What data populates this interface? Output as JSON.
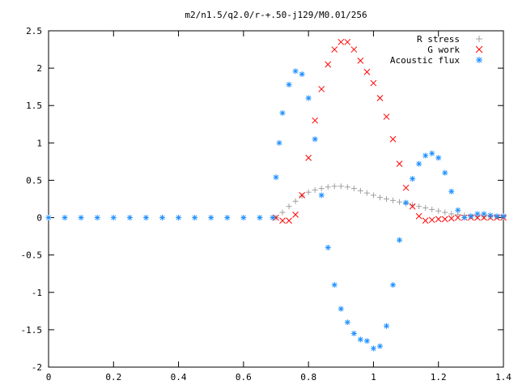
{
  "chart_data": {
    "type": "scatter",
    "title": "m2/n1.5/q2.0/r-+.50-j129/M0.01/256",
    "xlabel": "",
    "ylabel": "",
    "xlim": [
      0,
      1.4
    ],
    "ylim": [
      -2,
      2.5
    ],
    "x_ticks": [
      "0",
      "0.2",
      "0.4",
      "0.6",
      "0.8",
      "1",
      "1.2",
      "1.4"
    ],
    "y_ticks": [
      "2.5",
      "2",
      "1.5",
      "1",
      "0.5",
      "0",
      "-0.5",
      "-1",
      "-1.5",
      "-2"
    ],
    "grid": false,
    "legend_position": "top-right",
    "series": [
      {
        "name": "R stress",
        "marker": "+",
        "color": "#a0a0a0",
        "x": [
          0.7,
          0.72,
          0.74,
          0.76,
          0.78,
          0.8,
          0.82,
          0.84,
          0.86,
          0.88,
          0.9,
          0.92,
          0.94,
          0.96,
          0.98,
          1.0,
          1.02,
          1.04,
          1.06,
          1.08,
          1.1,
          1.12,
          1.14,
          1.16,
          1.18,
          1.2,
          1.22,
          1.24,
          1.26,
          1.28,
          1.3,
          1.32,
          1.34,
          1.36,
          1.38,
          1.4
        ],
        "y": [
          0.0,
          0.07,
          0.15,
          0.22,
          0.29,
          0.34,
          0.37,
          0.39,
          0.41,
          0.42,
          0.42,
          0.41,
          0.39,
          0.36,
          0.33,
          0.3,
          0.27,
          0.25,
          0.23,
          0.21,
          0.19,
          0.17,
          0.15,
          0.13,
          0.11,
          0.09,
          0.07,
          0.05,
          0.04,
          0.03,
          0.02,
          0.01,
          0.01,
          0.01,
          0.01,
          0.01
        ]
      },
      {
        "name": "G work",
        "marker": "x",
        "color": "#ff0000",
        "x": [
          0.7,
          0.72,
          0.74,
          0.76,
          0.78,
          0.8,
          0.82,
          0.84,
          0.86,
          0.88,
          0.9,
          0.92,
          0.94,
          0.96,
          0.98,
          1.0,
          1.02,
          1.04,
          1.06,
          1.08,
          1.1,
          1.12,
          1.14,
          1.16,
          1.18,
          1.2,
          1.22,
          1.24,
          1.26,
          1.28,
          1.3,
          1.32,
          1.34,
          1.36,
          1.38,
          1.4
        ],
        "y": [
          0.0,
          -0.04,
          -0.04,
          0.04,
          0.3,
          0.8,
          1.3,
          1.72,
          2.05,
          2.25,
          2.35,
          2.35,
          2.25,
          2.1,
          1.95,
          1.8,
          1.6,
          1.35,
          1.05,
          0.72,
          0.4,
          0.15,
          0.02,
          -0.04,
          -0.03,
          -0.02,
          -0.02,
          -0.01,
          0.0,
          0.0,
          0.0,
          0.0,
          0.0,
          0.0,
          0.0,
          0.0
        ]
      },
      {
        "name": "Acoustic flux",
        "marker": "*",
        "color": "#1e90ff",
        "x": [
          0.0,
          0.05,
          0.1,
          0.15,
          0.2,
          0.25,
          0.3,
          0.35,
          0.4,
          0.45,
          0.5,
          0.55,
          0.6,
          0.65,
          0.69,
          0.7,
          0.71,
          0.72,
          0.74,
          0.76,
          0.78,
          0.8,
          0.82,
          0.84,
          0.86,
          0.88,
          0.9,
          0.92,
          0.94,
          0.96,
          0.98,
          1.0,
          1.02,
          1.04,
          1.06,
          1.08,
          1.1,
          1.12,
          1.14,
          1.16,
          1.18,
          1.2,
          1.22,
          1.24,
          1.26,
          1.28,
          1.3,
          1.32,
          1.34,
          1.36,
          1.38,
          1.4
        ],
        "y": [
          0.0,
          0.0,
          0.0,
          0.0,
          0.0,
          0.0,
          0.0,
          0.0,
          0.0,
          0.0,
          0.0,
          0.0,
          0.0,
          0.0,
          0.0,
          0.54,
          1.0,
          1.4,
          1.78,
          1.96,
          1.92,
          1.6,
          1.05,
          0.3,
          -0.4,
          -0.9,
          -1.22,
          -1.4,
          -1.55,
          -1.63,
          -1.65,
          -1.75,
          -1.72,
          -1.45,
          -0.9,
          -0.3,
          0.2,
          0.52,
          0.72,
          0.83,
          0.86,
          0.8,
          0.6,
          0.35,
          0.1,
          0.0,
          0.02,
          0.05,
          0.05,
          0.03,
          0.02,
          0.02
        ]
      }
    ]
  }
}
